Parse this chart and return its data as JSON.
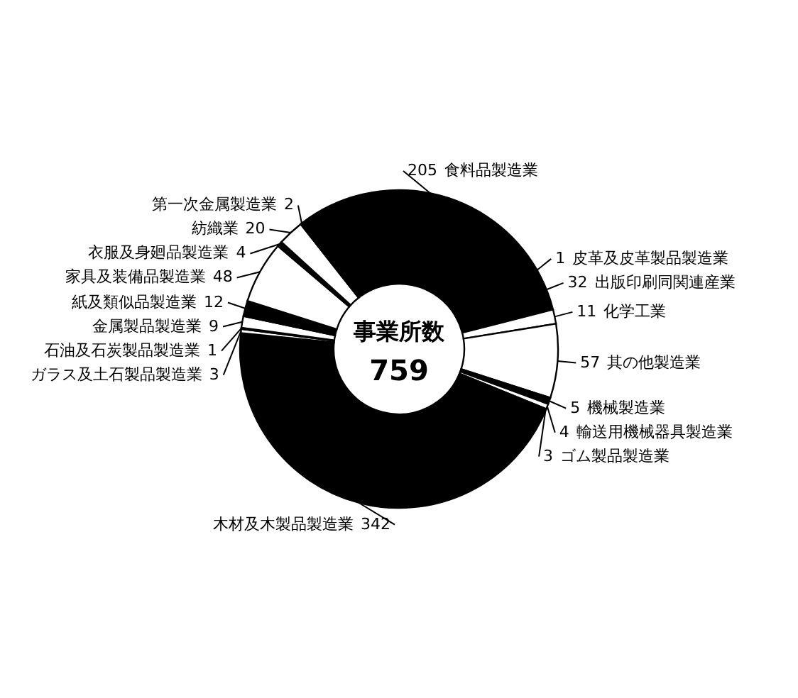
{
  "chart_data": {
    "type": "donut",
    "title": "事業所数",
    "annotations": [
      "759"
    ],
    "data_labels": true,
    "categories": [
      "食料品製造業",
      "皮革及皮革製品製造業",
      "出版印刷同関連産業",
      "化学工業",
      "其の他製造業",
      "機械製造業",
      "輸送用機械器具製造業",
      "ゴム製品製造業",
      "木材及木製品製造業",
      "ガラス及土石製品製造業",
      "石油及石炭製品製造業",
      "金属製品製造業",
      "紙及類似品製造業",
      "家具及装備品製造業",
      "衣服及身廻品製造業",
      "紡織業",
      "第一次金属製造業"
    ],
    "values": [
      205,
      1,
      32,
      11,
      57,
      5,
      4,
      3,
      342,
      3,
      1,
      9,
      12,
      48,
      4,
      20,
      2
    ],
    "colors": [
      "#000000",
      "#ffffff",
      "#000000",
      "#ffffff",
      "#ffffff",
      "#000000",
      "#ffffff",
      "#000000",
      "#000000",
      "#ffffff",
      "#000000",
      "#ffffff",
      "#000000",
      "#ffffff",
      "#000000",
      "#ffffff",
      "#000000"
    ]
  }
}
